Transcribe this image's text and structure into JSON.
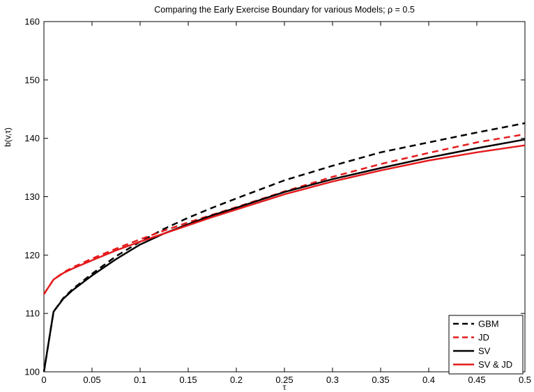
{
  "chart_data": {
    "type": "line",
    "title": "Comparing the Early Exercise Boundary for various Models; ρ = 0.5",
    "xlabel": "τ",
    "ylabel": "b(v,τ)",
    "xlim": [
      0,
      0.5
    ],
    "ylim": [
      100,
      160
    ],
    "x_ticks": [
      0,
      0.05,
      0.1,
      0.15,
      0.2,
      0.25,
      0.3,
      0.35,
      0.4,
      0.45,
      0.5
    ],
    "x_tick_labels": [
      "0",
      "0.05",
      "0.1",
      "0.15",
      "0.2",
      "0.25",
      "0.3",
      "0.35",
      "0.4",
      "0.45",
      "0.5"
    ],
    "y_ticks": [
      100,
      110,
      120,
      130,
      140,
      150,
      160
    ],
    "y_tick_labels": [
      "100",
      "110",
      "120",
      "130",
      "140",
      "150",
      "160"
    ],
    "grid": false,
    "legend_position": "bottom-right",
    "series": [
      {
        "name": "GBM",
        "color": "#000000",
        "dash": "dashed",
        "x": [
          0,
          0.01,
          0.02,
          0.03,
          0.05,
          0.075,
          0.1,
          0.125,
          0.15,
          0.175,
          0.2,
          0.25,
          0.3,
          0.35,
          0.4,
          0.45,
          0.5
        ],
        "y": [
          100,
          110.3,
          112.6,
          114.2,
          116.8,
          119.8,
          122.3,
          124.5,
          126.4,
          128.1,
          129.7,
          132.8,
          135.3,
          137.6,
          139.3,
          141,
          142.6
        ]
      },
      {
        "name": "JD",
        "color": "#e41a1c",
        "dash": "dashed",
        "x": [
          0,
          0.01,
          0.02,
          0.03,
          0.05,
          0.075,
          0.1,
          0.125,
          0.15,
          0.175,
          0.2,
          0.25,
          0.3,
          0.35,
          0.4,
          0.45,
          0.5
        ],
        "y": [
          113.3,
          115.8,
          117,
          117.9,
          119.4,
          121.1,
          122.7,
          124.2,
          125.6,
          126.9,
          128.2,
          130.9,
          133.4,
          135.6,
          137.5,
          139.3,
          140.7
        ]
      },
      {
        "name": "SV",
        "color": "#000000",
        "dash": "solid",
        "x": [
          0,
          0.01,
          0.02,
          0.03,
          0.05,
          0.075,
          0.1,
          0.125,
          0.15,
          0.175,
          0.2,
          0.25,
          0.3,
          0.35,
          0.4,
          0.45,
          0.5
        ],
        "y": [
          100,
          110.3,
          112.5,
          114,
          116.5,
          119.3,
          121.8,
          123.7,
          125.3,
          126.8,
          128.1,
          130.8,
          133,
          134.9,
          136.7,
          138.3,
          139.8
        ]
      },
      {
        "name": "SV & JD",
        "color": "#e41a1c",
        "dash": "solid",
        "x": [
          0,
          0.01,
          0.02,
          0.03,
          0.05,
          0.075,
          0.1,
          0.125,
          0.15,
          0.175,
          0.2,
          0.25,
          0.3,
          0.35,
          0.4,
          0.45,
          0.5
        ],
        "y": [
          113.3,
          115.8,
          116.9,
          117.7,
          119.1,
          120.8,
          122.3,
          123.7,
          125.1,
          126.5,
          127.8,
          130.4,
          132.6,
          134.5,
          136.2,
          137.6,
          138.8
        ]
      }
    ]
  }
}
